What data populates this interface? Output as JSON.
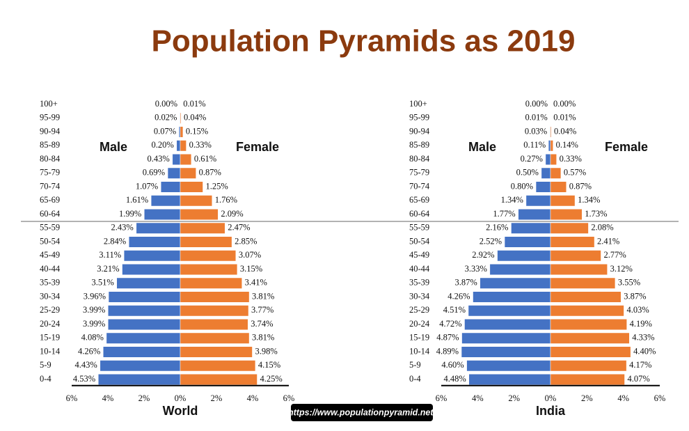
{
  "title": "Population Pyramids as 2019",
  "source": "https://www.populationpyramid.net/",
  "chart_data": [
    {
      "type": "pyramid",
      "title": "World",
      "categories": [
        "100+",
        "95-99",
        "90-94",
        "85-89",
        "80-84",
        "75-79",
        "70-74",
        "65-69",
        "60-64",
        "55-59",
        "50-54",
        "45-49",
        "40-44",
        "35-39",
        "30-34",
        "25-29",
        "20-24",
        "15-19",
        "10-14",
        "5-9",
        "0-4"
      ],
      "series": [
        {
          "name": "Male",
          "color": "#4472c4",
          "values": [
            0.0,
            0.02,
            0.07,
            0.2,
            0.43,
            0.69,
            1.07,
            1.61,
            1.99,
            2.43,
            2.84,
            3.11,
            3.21,
            3.51,
            3.96,
            3.99,
            3.99,
            4.08,
            4.26,
            4.43,
            4.53
          ],
          "value_labels": [
            "0.00%",
            "0.02%",
            "0.07%",
            "0.20%",
            "0.43%",
            "0.69%",
            "1.07%",
            "1.61%",
            "1.99%",
            "2.43%",
            "2.84%",
            "3.11%",
            "3.21%",
            "3.51%",
            "3.96%",
            "3.99%",
            "3.99%",
            "4.08%",
            "4.26%",
            "4.43%",
            "4.53%"
          ]
        },
        {
          "name": "Female",
          "color": "#ed7d31",
          "values": [
            0.01,
            0.04,
            0.15,
            0.33,
            0.61,
            0.87,
            1.25,
            1.76,
            2.09,
            2.47,
            2.85,
            3.07,
            3.15,
            3.41,
            3.81,
            3.77,
            3.74,
            3.81,
            3.98,
            4.15,
            4.25
          ],
          "value_labels": [
            "0.01%",
            "0.04%",
            "0.15%",
            "0.33%",
            "0.61%",
            "0.87%",
            "1.25%",
            "1.76%",
            "2.09%",
            "2.47%",
            "2.85%",
            "3.07%",
            "3.15%",
            "3.41%",
            "3.81%",
            "3.77%",
            "3.74%",
            "3.81%",
            "3.98%",
            "4.15%",
            "4.25%"
          ]
        }
      ],
      "xlim": [
        -6,
        6
      ],
      "xticks": [
        {
          "value": -6,
          "label": "6%"
        },
        {
          "value": -4,
          "label": "4%"
        },
        {
          "value": -2,
          "label": "2%"
        },
        {
          "value": 0,
          "label": "0%"
        },
        {
          "value": 2,
          "label": "2%"
        },
        {
          "value": 4,
          "label": "4%"
        },
        {
          "value": 6,
          "label": "6%"
        }
      ]
    },
    {
      "type": "pyramid",
      "title": "India",
      "categories": [
        "100+",
        "95-99",
        "90-94",
        "85-89",
        "80-84",
        "75-79",
        "70-74",
        "65-69",
        "60-64",
        "55-59",
        "50-54",
        "45-49",
        "40-44",
        "35-39",
        "30-34",
        "25-29",
        "20-24",
        "15-19",
        "10-14",
        "5-9",
        "0-4"
      ],
      "series": [
        {
          "name": "Male",
          "color": "#4472c4",
          "values": [
            0.0,
            0.01,
            0.03,
            0.11,
            0.27,
            0.5,
            0.8,
            1.34,
            1.77,
            2.16,
            2.52,
            2.92,
            3.33,
            3.87,
            4.26,
            4.51,
            4.72,
            4.87,
            4.89,
            4.6,
            4.48
          ],
          "value_labels": [
            "0.00%",
            "0.01%",
            "0.03%",
            "0.11%",
            "0.27%",
            "0.50%",
            "0.80%",
            "1.34%",
            "1.77%",
            "2.16%",
            "2.52%",
            "2.92%",
            "3.33%",
            "3.87%",
            "4.26%",
            "4.51%",
            "4.72%",
            "4.87%",
            "4.89%",
            "4.60%",
            "4.48%"
          ]
        },
        {
          "name": "Female",
          "color": "#ed7d31",
          "values": [
            0.0,
            0.01,
            0.04,
            0.14,
            0.33,
            0.57,
            0.87,
            1.34,
            1.73,
            2.08,
            2.41,
            2.77,
            3.12,
            3.55,
            3.87,
            4.03,
            4.19,
            4.33,
            4.4,
            4.17,
            4.07
          ],
          "value_labels": [
            "0.00%",
            "0.01%",
            "0.04%",
            "0.14%",
            "0.33%",
            "0.57%",
            "0.87%",
            "1.34%",
            "1.73%",
            "2.08%",
            "2.41%",
            "2.77%",
            "3.12%",
            "3.55%",
            "3.87%",
            "4.03%",
            "4.19%",
            "4.33%",
            "4.40%",
            "4.17%",
            "4.07%"
          ]
        }
      ],
      "xlim": [
        -6,
        6
      ],
      "xticks": [
        {
          "value": -6,
          "label": "6%"
        },
        {
          "value": -4,
          "label": "4%"
        },
        {
          "value": -2,
          "label": "2%"
        },
        {
          "value": 0,
          "label": "0%"
        },
        {
          "value": 2,
          "label": "2%"
        },
        {
          "value": 4,
          "label": "4%"
        },
        {
          "value": 6,
          "label": "6%"
        }
      ]
    }
  ]
}
